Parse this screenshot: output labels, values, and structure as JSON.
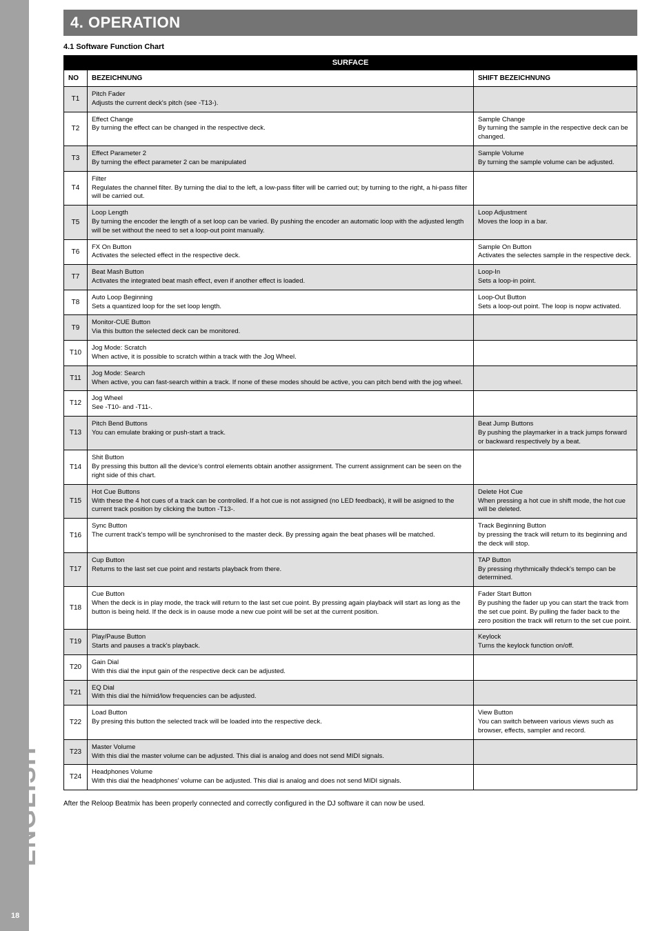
{
  "sidebar": {
    "label": "ENGLISH",
    "page_number": "18"
  },
  "chapter": {
    "title": "4. OPERATION"
  },
  "subheading": "4.1 Software Function Chart",
  "table": {
    "surface_label": "SURFACE",
    "headers": {
      "no": "NO",
      "bez": "BEZEICHNUNG",
      "shift": "SHIFT BEZEICHNUNG"
    },
    "rows": [
      {
        "no": "T1",
        "shade": true,
        "bez_title": "Pitch Fader",
        "bez_body": "Adjusts the current deck's pitch (see -T13-).",
        "shift_title": "",
        "shift_body": ""
      },
      {
        "no": "T2",
        "shade": false,
        "bez_title": "Effect Change",
        "bez_body": "By turning the effect can be changed in the respective deck.",
        "shift_title": "Sample Change",
        "shift_body": "By turning the sample in the respective deck can be changed."
      },
      {
        "no": "T3",
        "shade": true,
        "bez_title": "Effect Parameter 2",
        "bez_body": "By turning the effect parameter 2 can be manipulated",
        "shift_title": "Sample Volume",
        "shift_body": "By turning the sample volume can be adjusted."
      },
      {
        "no": "T4",
        "shade": false,
        "bez_title": "Filter",
        "bez_body": "Regulates the channel filter. By turning the dial to the left, a low-pass filter will be carried out; by turning to the right, a hi-pass filter will be carried out.",
        "shift_title": "",
        "shift_body": ""
      },
      {
        "no": "T5",
        "shade": true,
        "bez_title": "Loop Length",
        "bez_body": "By turning the encoder the length of a set loop can be varied. By pushing the encoder an automatic loop with the adjusted length will be set without the need to set a loop-out point manually.",
        "shift_title": "Loop Adjustment",
        "shift_body": "Moves the loop in a bar."
      },
      {
        "no": "T6",
        "shade": false,
        "bez_title": "FX On Button",
        "bez_body": "Activates the selected effect in the respective deck.",
        "shift_title": "Sample On Button",
        "shift_body": "Activates the selectes sample in the respective deck."
      },
      {
        "no": "T7",
        "shade": true,
        "bez_title": "Beat Mash Button",
        "bez_body": "Activates the integrated beat mash effect, even if another effect is loaded.",
        "shift_title": "Loop-In",
        "shift_body": "Sets a loop-in point."
      },
      {
        "no": "T8",
        "shade": false,
        "bez_title": "Auto Loop Beginning",
        "bez_body": "Sets a quantized loop for the set loop length.",
        "shift_title": "Loop-Out Button",
        "shift_body": "Sets a loop-out point. The loop is nopw activated."
      },
      {
        "no": "T9",
        "shade": true,
        "bez_title": "Monitor-CUE Button",
        "bez_body": "Via this button the selected deck can be monitored.",
        "shift_title": "",
        "shift_body": ""
      },
      {
        "no": "T10",
        "shade": false,
        "bez_title": "Jog Mode: Scratch",
        "bez_body": "When active, it is possible to scratch within a track with the Jog Wheel.",
        "shift_title": "",
        "shift_body": ""
      },
      {
        "no": "T11",
        "shade": true,
        "bez_title": "Jog Mode: Search",
        "bez_body": "When active, you can fast-search within a track. If none of these modes should be active, you can pitch bend with the jog wheel.",
        "shift_title": "",
        "shift_body": ""
      },
      {
        "no": "T12",
        "shade": false,
        "bez_title": "Jog Wheel",
        "bez_body": "See -T10- and -T11-.",
        "shift_title": "",
        "shift_body": ""
      },
      {
        "no": "T13",
        "shade": true,
        "bez_title": "Pitch Bend Buttons",
        "bez_body": "You can emulate braking or push-start a track.",
        "shift_title": "Beat Jump Buttons",
        "shift_body": "By pushing the playmarker in a track  jumps forward or backward respectively by a beat."
      },
      {
        "no": "T14",
        "shade": false,
        "bez_title": "Shit Button",
        "bez_body": "By pressing this button all the device's control elements obtain another assignment. The current assignment can be seen on the right side of this chart.",
        "shift_title": "",
        "shift_body": ""
      },
      {
        "no": "T15",
        "shade": true,
        "bez_title": "Hot Cue Buttons",
        "bez_body": "With these the 4 hot cues of a track can be controlled. If a hot cue is not assigned (no LED feedback), it will be asigned to the current track position by clicking the button -T13-.",
        "shift_title": "Delete Hot Cue",
        "shift_body": "When pressing a hot cue in shift mode, the hot cue will be deleted."
      },
      {
        "no": "T16",
        "shade": false,
        "bez_title": "Sync Button",
        "bez_body": "The current track's tempo will be synchronised to the master deck. By pressing again the beat phases will be matched.",
        "shift_title": "Track Beginning Button",
        "shift_body": "by pressing the track will return to its beginning and the deck will stop."
      },
      {
        "no": "T17",
        "shade": true,
        "bez_title": "Cup Button",
        "bez_body": "Returns to the last set cue point and restarts playback from there.",
        "shift_title": "TAP Button",
        "shift_body": "By pressing rhythmically thdeck's tempo can be determined."
      },
      {
        "no": "T18",
        "shade": false,
        "bez_title": "Cue Button",
        "bez_body": "When the deck is in play mode, the track will return to the last set cue point. By pressing again playback will start as long as the button is being held. If the deck is in oause mode a new cue point will be set at the current position.",
        "shift_title": "Fader Start Button",
        "shift_body": "By pushing the fader up you can start the track from the set cue point. By pulling the fader back to the zero position the track will return to the set cue point."
      },
      {
        "no": "T19",
        "shade": true,
        "bez_title": "Play/Pause Button",
        "bez_body": "Starts and pauses a track's playback.",
        "shift_title": "Keylock",
        "shift_body": "Turns the keylock function on/off."
      },
      {
        "no": "T20",
        "shade": false,
        "bez_title": "Gain Dial",
        "bez_body": "With this dial the input gain of the respective deck can be adjusted.",
        "shift_title": "",
        "shift_body": ""
      },
      {
        "no": "T21",
        "shade": true,
        "bez_title": "EQ Dial",
        "bez_body": "With this dial the hi/mid/low frequencies can be adjusted.",
        "shift_title": "",
        "shift_body": ""
      },
      {
        "no": "T22",
        "shade": false,
        "bez_title": "Load Button",
        "bez_body": "By presing this button the selected track will be loaded into the respective deck.",
        "shift_title": "View Button",
        "shift_body": "You can switch between various views such as browser, effects, sampler and record."
      },
      {
        "no": "T23",
        "shade": true,
        "bez_title": "Master Volume",
        "bez_body": "With this dial the master volume can be adjusted. This dial is analog and does not send MIDI signals.",
        "shift_title": "",
        "shift_body": ""
      },
      {
        "no": "T24",
        "shade": false,
        "bez_title": "Headphones Volume",
        "bez_body": "With this dial the headphones' volume can be adjusted. This dial is analog and does not send MIDI signals.",
        "shift_title": "",
        "shift_body": ""
      }
    ]
  },
  "after_note": "After the Reloop Beatmix has been properly connected and correctly configured in the DJ software it can now be used."
}
